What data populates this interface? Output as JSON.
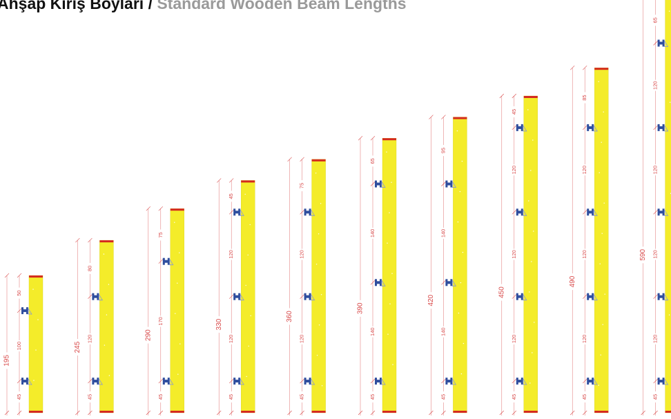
{
  "title": {
    "turkish": "Ahşap Kiriş Boyları /",
    "english": "Standard Wooden Beam Lengths"
  },
  "colors": {
    "beam": "#f4ec2a",
    "beam_edge": "#d8d020",
    "cap": "#d42a20",
    "dimension": "#d84848",
    "clamp": "#2f4e9e",
    "clamp_light": "#8c9ccc"
  },
  "beams": [
    {
      "length": "195",
      "segments": [
        "45",
        "100",
        "50"
      ]
    },
    {
      "length": "245",
      "segments": [
        "45",
        "120",
        "80"
      ]
    },
    {
      "length": "290",
      "segments": [
        "45",
        "170",
        "75"
      ]
    },
    {
      "length": "330",
      "segments": [
        "45",
        "120",
        "120",
        "45"
      ]
    },
    {
      "length": "360",
      "segments": [
        "45",
        "120",
        "120",
        "75"
      ]
    },
    {
      "length": "390",
      "segments": [
        "45",
        "140",
        "140",
        "65"
      ]
    },
    {
      "length": "420",
      "segments": [
        "45",
        "140",
        "140",
        "95"
      ]
    },
    {
      "length": "450",
      "segments": [
        "45",
        "120",
        "120",
        "120",
        "45"
      ]
    },
    {
      "length": "490",
      "segments": [
        "45",
        "120",
        "120",
        "120",
        "85"
      ]
    },
    {
      "length": "590",
      "segments": [
        "45",
        "120",
        "120",
        "120",
        "120",
        "65"
      ]
    }
  ]
}
